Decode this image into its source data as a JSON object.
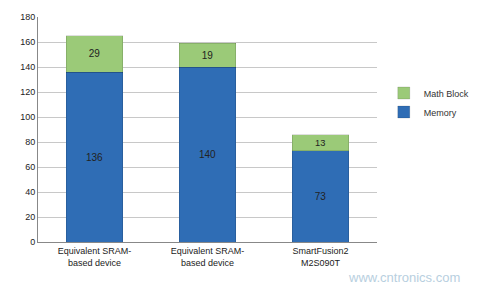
{
  "chart_data": {
    "type": "bar",
    "categories": [
      "Equivalent SRAM-based device",
      "Equivalent SRAM-based device",
      "SmartFusion2 M2S090T"
    ],
    "series": [
      {
        "name": "Memory",
        "color": "#2f6db5",
        "values": [
          136,
          140,
          73
        ]
      },
      {
        "name": "Math Block",
        "color": "#9bca78",
        "values": [
          29,
          19,
          13
        ]
      }
    ],
    "stacked": true,
    "data_labels": true,
    "ylim": [
      0,
      180
    ],
    "yticks": [
      0,
      20,
      40,
      60,
      80,
      100,
      120,
      140,
      160,
      180
    ],
    "grid": true,
    "legend": "right",
    "annotations": [
      "www.cntronics.com"
    ]
  }
}
